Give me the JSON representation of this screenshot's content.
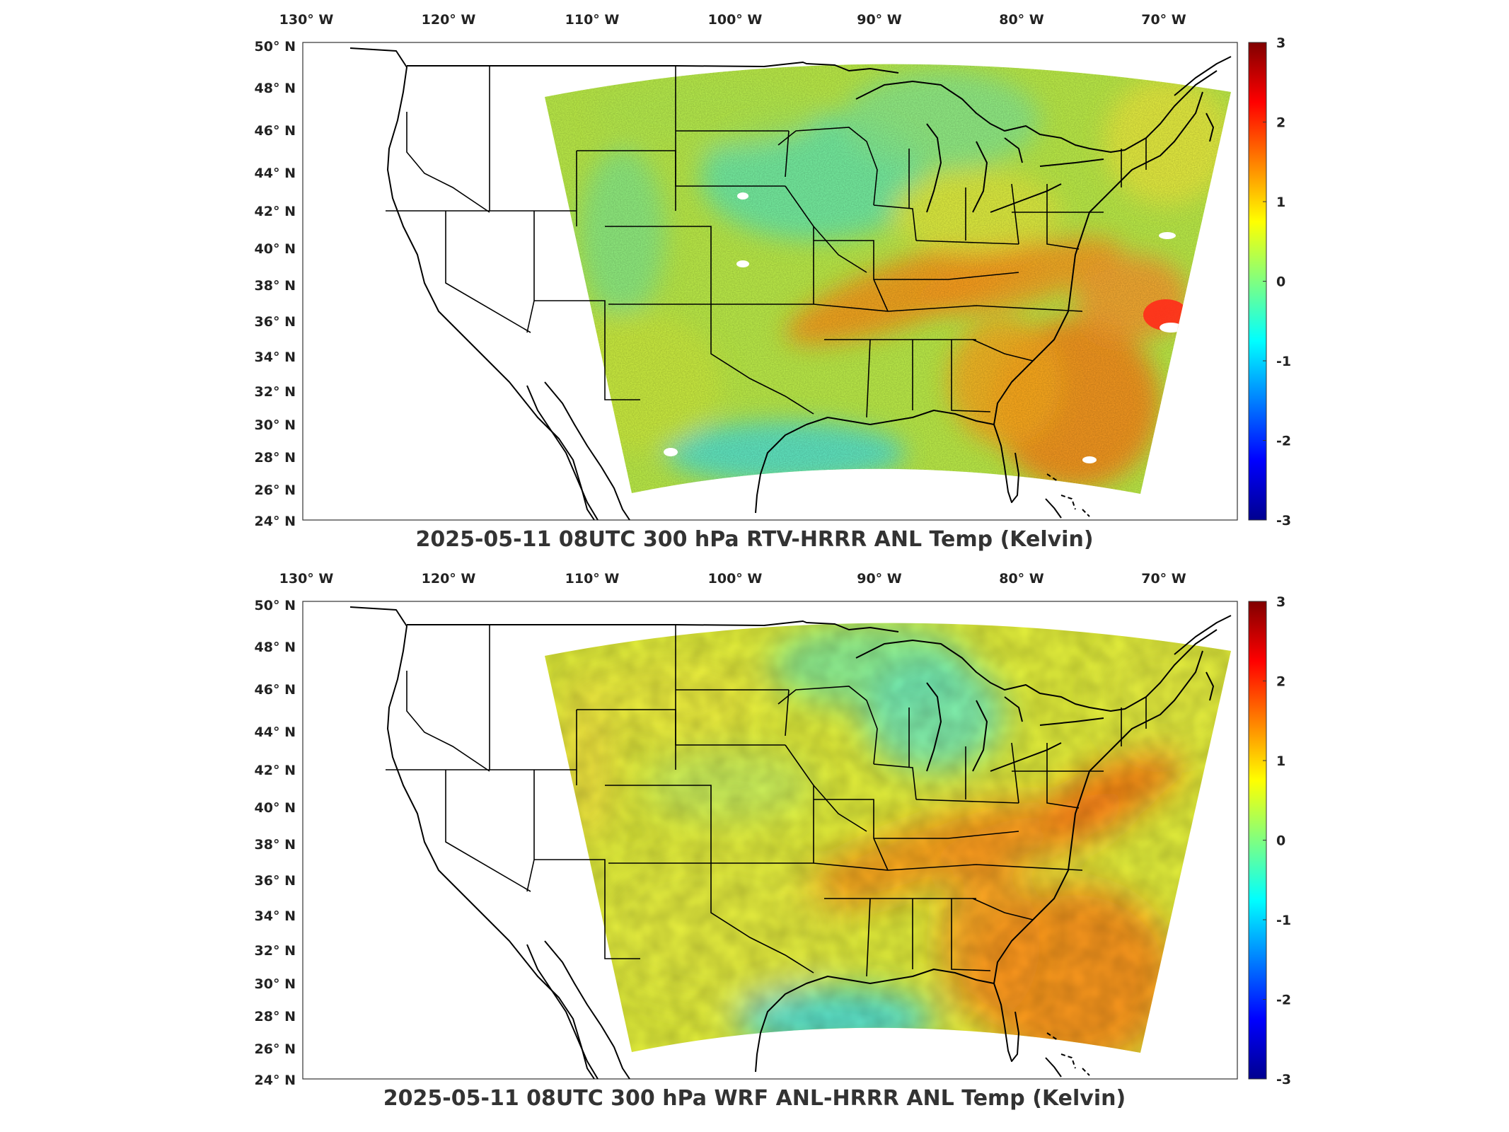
{
  "panels": [
    {
      "title": "2025-05-11 08UTC 300 hPa RTV-HRRR ANL Temp (Kelvin)",
      "variant": "rtv"
    },
    {
      "title": "2025-05-11 08UTC 300 hPa WRF ANL-HRRR ANL Temp (Kelvin)",
      "variant": "wrf"
    }
  ],
  "lon_ticks": [
    "130° W",
    "120° W",
    "110° W",
    "100° W",
    "90° W",
    "80° W",
    "70° W"
  ],
  "lon_values": [
    -130,
    -120,
    -110,
    -100,
    -90,
    -80,
    -70
  ],
  "lat_ticks": [
    "50° N",
    "48° N",
    "46° N",
    "44° N",
    "42° N",
    "40° N",
    "38° N",
    "36° N",
    "34° N",
    "32° N",
    "30° N",
    "28° N",
    "26° N",
    "24° N"
  ],
  "lat_values": [
    50,
    48,
    46,
    44,
    42,
    40,
    38,
    36,
    34,
    32,
    30,
    28,
    26,
    24
  ],
  "colorbar": {
    "labels": [
      "3",
      "2",
      "1",
      "0",
      "-1",
      "-2",
      "-3"
    ],
    "values": [
      3,
      2,
      1,
      0,
      -1,
      -2,
      -3
    ],
    "range": [
      -3,
      3
    ],
    "colormap": "jet",
    "colors": [
      "#00008f",
      "#0000ff",
      "#0080ff",
      "#00ffff",
      "#80ff80",
      "#ffff00",
      "#ff8000",
      "#ff0000",
      "#800000"
    ]
  },
  "map": {
    "lon_range": [
      -131,
      -65
    ],
    "lat_range": [
      24,
      50
    ],
    "projection": "Lambert conformal (HRRR domain)",
    "coastlines": true,
    "state_borders": true
  }
}
